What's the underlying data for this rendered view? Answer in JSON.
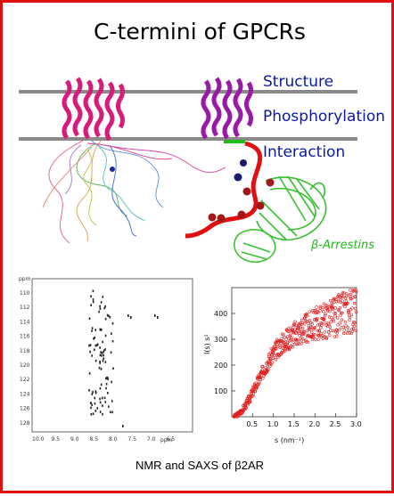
{
  "title": "C-termini of GPCRs",
  "labels": {
    "structure": "Structure",
    "phosphorylation": "Phosphorylation",
    "interaction": "Interaction",
    "arrestin": "β-Arrestins"
  },
  "caption": "NMR and SAXS of β2AR",
  "nmr": {
    "unit": "ppm",
    "x_ticks": [
      "10.0",
      "9.5",
      "9.0",
      "8.5",
      "8.0",
      "7.5",
      "7.0",
      "6.5"
    ],
    "y_ticks": [
      "110",
      "112",
      "114",
      "116",
      "118",
      "120",
      "122",
      "124",
      "126",
      "128"
    ]
  },
  "chart_data": {
    "type": "scatter",
    "xlabel": "s (nm⁻¹)",
    "ylabel": "I(s) s²",
    "xlim": [
      0,
      3.0
    ],
    "ylim": [
      0,
      500
    ],
    "x_ticks": [
      "0.5",
      "1.0",
      "1.5",
      "2.0",
      "2.5",
      "3.0"
    ],
    "y_ticks": [
      "100",
      "200",
      "300",
      "400"
    ],
    "colors": {
      "points": "#e02020"
    }
  }
}
